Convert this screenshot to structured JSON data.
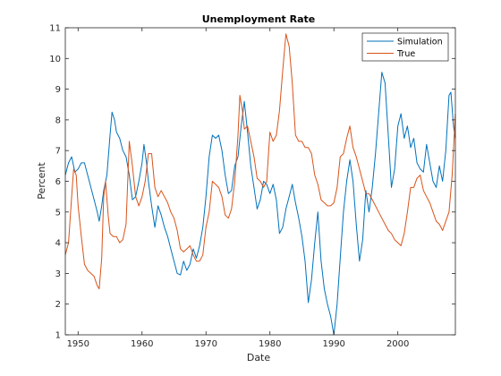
{
  "chart_data": {
    "type": "line",
    "title": "Unemployment Rate",
    "xlabel": "Date",
    "ylabel": "Percent",
    "xlim": [
      1948,
      2009
    ],
    "ylim": [
      1,
      11
    ],
    "xticks": [
      1950,
      1960,
      1970,
      1980,
      1990,
      2000
    ],
    "yticks": [
      1,
      2,
      3,
      4,
      5,
      6,
      7,
      8,
      9,
      10,
      11
    ],
    "grid": false,
    "legend_position": "top-right",
    "series": [
      {
        "name": "Simulation",
        "color": "#0072BD",
        "points": [
          [
            1948.0,
            6.2
          ],
          [
            1948.5,
            6.6
          ],
          [
            1949.0,
            6.8
          ],
          [
            1949.5,
            6.3
          ],
          [
            1950.0,
            6.4
          ],
          [
            1950.5,
            6.6
          ],
          [
            1951.0,
            6.6
          ],
          [
            1951.5,
            6.2
          ],
          [
            1952.0,
            5.8
          ],
          [
            1952.5,
            5.4
          ],
          [
            1953.0,
            5.0
          ],
          [
            1953.3,
            4.7
          ],
          [
            1953.7,
            5.2
          ],
          [
            1954.0,
            5.7
          ],
          [
            1954.5,
            6.2
          ],
          [
            1955.0,
            7.5
          ],
          [
            1955.3,
            8.25
          ],
          [
            1955.7,
            8.0
          ],
          [
            1956.0,
            7.6
          ],
          [
            1956.5,
            7.4
          ],
          [
            1957.0,
            7.0
          ],
          [
            1957.5,
            6.8
          ],
          [
            1958.0,
            6.2
          ],
          [
            1958.5,
            5.4
          ],
          [
            1959.0,
            5.5
          ],
          [
            1959.5,
            6.0
          ],
          [
            1960.0,
            6.6
          ],
          [
            1960.3,
            7.2
          ],
          [
            1960.7,
            6.6
          ],
          [
            1961.0,
            6.0
          ],
          [
            1961.5,
            5.2
          ],
          [
            1962.0,
            4.5
          ],
          [
            1962.5,
            5.2
          ],
          [
            1963.0,
            4.9
          ],
          [
            1963.5,
            4.5
          ],
          [
            1964.0,
            4.2
          ],
          [
            1964.5,
            3.8
          ],
          [
            1965.0,
            3.4
          ],
          [
            1965.5,
            3.0
          ],
          [
            1966.0,
            2.95
          ],
          [
            1966.5,
            3.4
          ],
          [
            1967.0,
            3.1
          ],
          [
            1967.5,
            3.3
          ],
          [
            1968.0,
            3.8
          ],
          [
            1968.5,
            3.5
          ],
          [
            1969.0,
            3.9
          ],
          [
            1969.5,
            4.5
          ],
          [
            1970.0,
            5.5
          ],
          [
            1970.5,
            6.8
          ],
          [
            1971.0,
            7.5
          ],
          [
            1971.5,
            7.4
          ],
          [
            1972.0,
            7.5
          ],
          [
            1972.5,
            7.0
          ],
          [
            1973.0,
            6.2
          ],
          [
            1973.5,
            5.6
          ],
          [
            1974.0,
            5.7
          ],
          [
            1974.5,
            6.5
          ],
          [
            1975.0,
            6.8
          ],
          [
            1975.5,
            7.8
          ],
          [
            1976.0,
            8.6
          ],
          [
            1976.5,
            7.6
          ],
          [
            1977.0,
            6.5
          ],
          [
            1977.5,
            5.8
          ],
          [
            1978.0,
            5.1
          ],
          [
            1978.5,
            5.4
          ],
          [
            1979.0,
            6.0
          ],
          [
            1979.5,
            5.9
          ],
          [
            1980.0,
            5.6
          ],
          [
            1980.5,
            5.9
          ],
          [
            1981.0,
            5.4
          ],
          [
            1981.5,
            4.3
          ],
          [
            1982.0,
            4.5
          ],
          [
            1982.5,
            5.1
          ],
          [
            1983.0,
            5.5
          ],
          [
            1983.5,
            5.9
          ],
          [
            1984.0,
            5.3
          ],
          [
            1984.5,
            4.8
          ],
          [
            1985.0,
            4.2
          ],
          [
            1985.5,
            3.4
          ],
          [
            1986.0,
            2.05
          ],
          [
            1986.5,
            2.8
          ],
          [
            1987.0,
            4.0
          ],
          [
            1987.5,
            5.0
          ],
          [
            1988.0,
            3.4
          ],
          [
            1988.5,
            2.5
          ],
          [
            1989.0,
            2.0
          ],
          [
            1989.5,
            1.6
          ],
          [
            1990.0,
            1.0
          ],
          [
            1990.5,
            2.0
          ],
          [
            1991.0,
            3.5
          ],
          [
            1991.5,
            5.0
          ],
          [
            1992.0,
            6.0
          ],
          [
            1992.5,
            6.7
          ],
          [
            1993.0,
            6.0
          ],
          [
            1993.5,
            4.6
          ],
          [
            1994.0,
            3.4
          ],
          [
            1994.5,
            4.1
          ],
          [
            1995.0,
            5.7
          ],
          [
            1995.5,
            5.0
          ],
          [
            1996.0,
            5.8
          ],
          [
            1996.5,
            6.9
          ],
          [
            1997.0,
            8.2
          ],
          [
            1997.5,
            9.55
          ],
          [
            1998.0,
            9.2
          ],
          [
            1998.5,
            7.5
          ],
          [
            1999.0,
            5.8
          ],
          [
            1999.5,
            6.4
          ],
          [
            2000.0,
            7.8
          ],
          [
            2000.5,
            8.2
          ],
          [
            2001.0,
            7.4
          ],
          [
            2001.5,
            7.8
          ],
          [
            2002.0,
            7.1
          ],
          [
            2002.5,
            7.4
          ],
          [
            2003.0,
            6.6
          ],
          [
            2003.5,
            6.4
          ],
          [
            2004.0,
            6.3
          ],
          [
            2004.5,
            7.2
          ],
          [
            2005.0,
            6.6
          ],
          [
            2005.5,
            6.0
          ],
          [
            2006.0,
            5.8
          ],
          [
            2006.5,
            6.5
          ],
          [
            2007.0,
            6.0
          ],
          [
            2007.5,
            7.0
          ],
          [
            2008.0,
            8.8
          ],
          [
            2008.3,
            8.9
          ],
          [
            2008.7,
            7.8
          ],
          [
            2009.0,
            7.4
          ]
        ]
      },
      {
        "name": "True",
        "color": "#D95319",
        "points": [
          [
            1948.0,
            3.6
          ],
          [
            1948.5,
            4.0
          ],
          [
            1949.0,
            5.5
          ],
          [
            1949.3,
            6.4
          ],
          [
            1949.7,
            6.2
          ],
          [
            1950.0,
            5.2
          ],
          [
            1950.5,
            4.2
          ],
          [
            1951.0,
            3.3
          ],
          [
            1951.5,
            3.1
          ],
          [
            1952.0,
            3.0
          ],
          [
            1952.5,
            2.9
          ],
          [
            1953.0,
            2.6
          ],
          [
            1953.3,
            2.5
          ],
          [
            1953.7,
            3.5
          ],
          [
            1954.0,
            5.5
          ],
          [
            1954.3,
            6.0
          ],
          [
            1954.7,
            4.9
          ],
          [
            1955.0,
            4.3
          ],
          [
            1955.5,
            4.2
          ],
          [
            1956.0,
            4.2
          ],
          [
            1956.5,
            4.0
          ],
          [
            1957.0,
            4.1
          ],
          [
            1957.5,
            4.6
          ],
          [
            1958.0,
            7.3
          ],
          [
            1958.5,
            6.5
          ],
          [
            1959.0,
            5.5
          ],
          [
            1959.5,
            5.2
          ],
          [
            1960.0,
            5.5
          ],
          [
            1960.5,
            6.0
          ],
          [
            1961.0,
            6.9
          ],
          [
            1961.5,
            6.9
          ],
          [
            1962.0,
            5.8
          ],
          [
            1962.5,
            5.5
          ],
          [
            1963.0,
            5.7
          ],
          [
            1963.5,
            5.5
          ],
          [
            1964.0,
            5.3
          ],
          [
            1964.5,
            5.0
          ],
          [
            1965.0,
            4.8
          ],
          [
            1965.5,
            4.4
          ],
          [
            1966.0,
            3.8
          ],
          [
            1966.5,
            3.7
          ],
          [
            1967.0,
            3.8
          ],
          [
            1967.5,
            3.9
          ],
          [
            1968.0,
            3.6
          ],
          [
            1968.5,
            3.4
          ],
          [
            1969.0,
            3.4
          ],
          [
            1969.5,
            3.6
          ],
          [
            1970.0,
            4.5
          ],
          [
            1970.5,
            5.0
          ],
          [
            1971.0,
            6.0
          ],
          [
            1971.5,
            5.9
          ],
          [
            1972.0,
            5.8
          ],
          [
            1972.5,
            5.5
          ],
          [
            1973.0,
            4.9
          ],
          [
            1973.5,
            4.8
          ],
          [
            1974.0,
            5.1
          ],
          [
            1974.5,
            6.0
          ],
          [
            1975.0,
            7.5
          ],
          [
            1975.3,
            8.8
          ],
          [
            1975.7,
            8.3
          ],
          [
            1976.0,
            7.7
          ],
          [
            1976.5,
            7.8
          ],
          [
            1977.0,
            7.3
          ],
          [
            1977.5,
            6.8
          ],
          [
            1978.0,
            6.1
          ],
          [
            1978.5,
            6.0
          ],
          [
            1979.0,
            5.8
          ],
          [
            1979.5,
            6.0
          ],
          [
            1980.0,
            7.6
          ],
          [
            1980.5,
            7.3
          ],
          [
            1981.0,
            7.5
          ],
          [
            1981.5,
            8.3
          ],
          [
            1982.0,
            9.6
          ],
          [
            1982.5,
            10.8
          ],
          [
            1983.0,
            10.4
          ],
          [
            1983.5,
            9.2
          ],
          [
            1984.0,
            7.5
          ],
          [
            1984.5,
            7.3
          ],
          [
            1985.0,
            7.3
          ],
          [
            1985.5,
            7.1
          ],
          [
            1986.0,
            7.1
          ],
          [
            1986.5,
            6.9
          ],
          [
            1987.0,
            6.2
          ],
          [
            1987.5,
            5.9
          ],
          [
            1988.0,
            5.4
          ],
          [
            1988.5,
            5.3
          ],
          [
            1989.0,
            5.2
          ],
          [
            1989.5,
            5.2
          ],
          [
            1990.0,
            5.3
          ],
          [
            1990.5,
            5.8
          ],
          [
            1991.0,
            6.8
          ],
          [
            1991.5,
            6.9
          ],
          [
            1992.0,
            7.4
          ],
          [
            1992.5,
            7.8
          ],
          [
            1993.0,
            7.1
          ],
          [
            1993.5,
            6.8
          ],
          [
            1994.0,
            6.4
          ],
          [
            1994.5,
            6.0
          ],
          [
            1995.0,
            5.6
          ],
          [
            1995.5,
            5.6
          ],
          [
            1996.0,
            5.4
          ],
          [
            1996.5,
            5.2
          ],
          [
            1997.0,
            5.0
          ],
          [
            1997.5,
            4.8
          ],
          [
            1998.0,
            4.6
          ],
          [
            1998.5,
            4.4
          ],
          [
            1999.0,
            4.3
          ],
          [
            1999.5,
            4.1
          ],
          [
            2000.0,
            4.0
          ],
          [
            2000.5,
            3.9
          ],
          [
            2001.0,
            4.3
          ],
          [
            2001.5,
            5.0
          ],
          [
            2002.0,
            5.8
          ],
          [
            2002.5,
            5.8
          ],
          [
            2003.0,
            6.1
          ],
          [
            2003.5,
            6.2
          ],
          [
            2004.0,
            5.7
          ],
          [
            2004.5,
            5.5
          ],
          [
            2005.0,
            5.3
          ],
          [
            2005.5,
            5.0
          ],
          [
            2006.0,
            4.7
          ],
          [
            2006.5,
            4.6
          ],
          [
            2007.0,
            4.4
          ],
          [
            2007.5,
            4.7
          ],
          [
            2008.0,
            5.0
          ],
          [
            2008.5,
            6.2
          ],
          [
            2009.0,
            8.2
          ]
        ]
      }
    ]
  }
}
